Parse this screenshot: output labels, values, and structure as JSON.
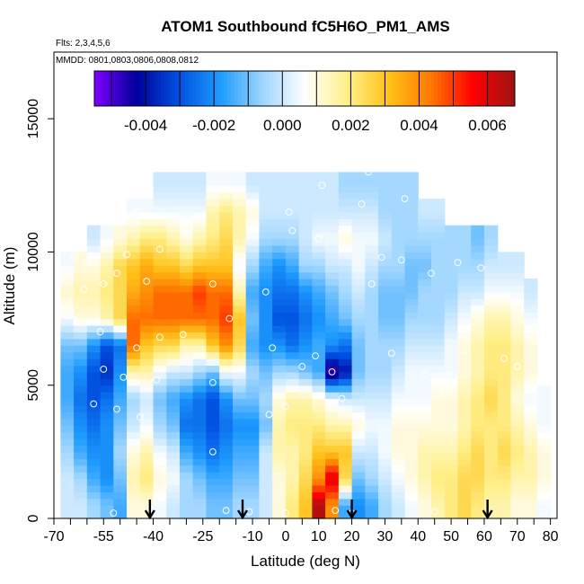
{
  "chart_data": {
    "type": "heatmap",
    "title": "ATOM1 Southbound fC5H6O_PM1_AMS",
    "subtitle_flights": "Flts: 2,3,4,5,6",
    "subtitle_dates": "MMDD: 0801,0803,0806,0808,0812",
    "xlabel": "Latitude (deg N)",
    "ylabel": "Altitude (m)",
    "xlim": [
      -70,
      82
    ],
    "ylim": [
      0,
      17500
    ],
    "x_ticks": [
      -70,
      -55,
      -40,
      -25,
      -10,
      0,
      10,
      20,
      30,
      40,
      50,
      60,
      70,
      80
    ],
    "x_minor_ticks": [
      -65,
      -60,
      -50,
      -45,
      -35,
      -30,
      -20,
      -15,
      -5,
      5,
      15,
      25,
      35,
      45,
      55,
      65,
      75
    ],
    "y_ticks": [
      0,
      5000,
      10000,
      15000
    ],
    "colorbar": {
      "min": -0.0055,
      "max": 0.0068,
      "ticks": [
        -0.004,
        -0.002,
        0.0,
        0.002,
        0.004,
        0.006
      ],
      "tick_labels": [
        "-0.004",
        "-0.002",
        "0.000",
        "0.002",
        "0.004",
        "0.006"
      ],
      "colors": [
        "#7f00ff",
        "#00009a",
        "#0050e0",
        "#1e9bff",
        "#9ed5ff",
        "#ffffff",
        "#ffef8a",
        "#ffc21a",
        "#ff7a00",
        "#ff0000",
        "#9b1414"
      ]
    },
    "arrows_latitude": [
      -41,
      -13,
      20,
      61
    ],
    "profiles": [
      {
        "lat": -66,
        "vals": [
          0,
          0,
          -0.0005,
          -0.001,
          -0.0015,
          -0.0015,
          -0.001,
          0.0005,
          0.0012,
          0.0005
        ]
      },
      {
        "lat": -62,
        "vals": [
          0,
          -0.0005,
          -0.0015,
          -0.002,
          -0.0025,
          -0.002,
          -0.001,
          0.001,
          0.0015,
          0.001
        ]
      },
      {
        "lat": -58,
        "vals": [
          -0.0005,
          -0.0015,
          -0.002,
          -0.0025,
          -0.003,
          -0.003,
          -0.002,
          0.001,
          0.0015,
          0.001,
          0
        ]
      },
      {
        "lat": -54,
        "vals": [
          -0.001,
          -0.002,
          -0.002,
          -0.002,
          -0.0025,
          -0.0035,
          -0.003,
          0.0015,
          0.002,
          0.0015,
          0.0005
        ]
      },
      {
        "lat": -50,
        "vals": [
          -0.0015,
          -0.001,
          -0.0005,
          -0.001,
          -0.0015,
          -0.002,
          -0.0025,
          0.0025,
          0.0025,
          0.0025,
          0.001
        ]
      },
      {
        "lat": -46,
        "vals": [
          0.001,
          0.0015,
          0.001,
          0,
          -0.0005,
          0.0015,
          0.0045,
          0.0045,
          0.0035,
          0.003,
          0.0015,
          0.0005
        ]
      },
      {
        "lat": -42,
        "vals": [
          0.001,
          0.002,
          0.0015,
          0.0005,
          0,
          0.0015,
          0.003,
          0.0045,
          0.004,
          0.0035,
          0.002,
          0.0005
        ]
      },
      {
        "lat": -38,
        "vals": [
          0.0005,
          0.001,
          0.0005,
          -0.0005,
          -0.001,
          0.0005,
          0.0025,
          0.0045,
          0.0045,
          0.003,
          0.002,
          0.0005,
          0
        ]
      },
      {
        "lat": -34,
        "vals": [
          0,
          0.0005,
          0,
          -0.001,
          -0.0015,
          0,
          0.0025,
          0.0045,
          0.0045,
          0.003,
          0.0015,
          0.0005,
          0
        ]
      },
      {
        "lat": -30,
        "vals": [
          -0.0005,
          -0.0005,
          -0.0015,
          -0.0025,
          -0.002,
          0,
          0.0015,
          0.0045,
          0.0045,
          0.0025,
          0.001,
          0.0005,
          0
        ]
      },
      {
        "lat": -26,
        "vals": [
          -0.0005,
          -0.001,
          -0.002,
          -0.0025,
          -0.0025,
          -0.0005,
          0.0015,
          0.0045,
          0.005,
          0.003,
          0.0015,
          0.0005,
          0
        ]
      },
      {
        "lat": -22,
        "vals": [
          -0.001,
          -0.0015,
          -0.0025,
          -0.003,
          -0.003,
          -0.001,
          0.003,
          0.0045,
          0.0045,
          0.003,
          0.002,
          0.0015,
          0.0005
        ]
      },
      {
        "lat": -18,
        "vals": [
          -0.001,
          -0.0015,
          -0.002,
          -0.0025,
          -0.002,
          0.0005,
          0.004,
          0.005,
          0.0045,
          0.003,
          0.0025,
          0.002,
          0.0005
        ]
      },
      {
        "lat": -14,
        "vals": [
          -0.0005,
          -0.001,
          -0.0015,
          -0.002,
          -0.001,
          0.0005,
          0.0025,
          0.003,
          0.0015,
          0.0005,
          0.0015,
          0.0015,
          0.0005
        ]
      },
      {
        "lat": -10,
        "vals": [
          -0.0005,
          -0.001,
          -0.0015,
          -0.002,
          -0.001,
          -0.0005,
          -0.0015,
          -0.001,
          -0.0015,
          -0.0005,
          0.0005,
          0.001,
          0
        ]
      },
      {
        "lat": -6,
        "vals": [
          0,
          0,
          0,
          -0.001,
          -0.0005,
          -0.001,
          -0.002,
          -0.002,
          -0.002,
          -0.0015,
          -0.0005,
          0,
          0
        ]
      },
      {
        "lat": -2,
        "vals": [
          0.001,
          0.001,
          0.0015,
          0.0015,
          0.001,
          -0.0005,
          -0.002,
          -0.003,
          -0.0025,
          -0.002,
          -0.0005,
          0,
          0
        ]
      },
      {
        "lat": 2,
        "vals": [
          0.002,
          0.0015,
          0.0015,
          0.002,
          0.0015,
          -0.0005,
          -0.0025,
          -0.003,
          -0.0025,
          -0.0015,
          -0.0005,
          0,
          0
        ]
      },
      {
        "lat": 6,
        "vals": [
          0.003,
          0.0025,
          0.002,
          0.002,
          0.0015,
          -0.001,
          -0.002,
          -0.0025,
          -0.002,
          -0.0005,
          0,
          0,
          0
        ]
      },
      {
        "lat": 10,
        "vals": [
          0.0065,
          0.004,
          0.003,
          0.002,
          0.001,
          -0.0015,
          -0.0015,
          -0.002,
          -0.0015,
          -0.0005,
          0.0005,
          0,
          0
        ]
      },
      {
        "lat": 14,
        "vals": [
          0.004,
          0.006,
          0.003,
          0.0015,
          0.0005,
          -0.005,
          -0.002,
          -0.0015,
          -0.001,
          0,
          0.0005,
          0,
          0
        ]
      },
      {
        "lat": 18,
        "vals": [
          -0.0015,
          0.0025,
          0.003,
          0.0015,
          0,
          -0.004,
          -0.0025,
          -0.001,
          -0.0005,
          0,
          0.001,
          0,
          -0.0005
        ]
      },
      {
        "lat": 22,
        "vals": [
          -0.002,
          -0.001,
          0,
          0.001,
          0,
          -0.001,
          -0.001,
          -0.0005,
          0,
          0.0005,
          0.0005,
          0,
          -0.0005
        ]
      },
      {
        "lat": 26,
        "vals": [
          -0.0015,
          -0.0005,
          0,
          0.0005,
          0,
          -0.0005,
          -0.0005,
          -0.0005,
          -0.0005,
          0,
          0.0005,
          0,
          -0.0005
        ]
      },
      {
        "lat": 30,
        "vals": [
          -0.0005,
          0,
          0.0005,
          0.0005,
          0,
          -0.0005,
          -0.0005,
          -0.001,
          -0.001,
          -0.0005,
          0,
          -0.0005,
          -0.0005
        ]
      },
      {
        "lat": 34,
        "vals": [
          0,
          0.0005,
          0.001,
          0.001,
          0.0005,
          0,
          -0.0005,
          -0.001,
          -0.001,
          -0.0005,
          -0.0005,
          -0.0005,
          -0.0005
        ]
      },
      {
        "lat": 38,
        "vals": [
          0.0005,
          0.001,
          0.001,
          0.001,
          0.0005,
          0.0005,
          0,
          -0.0005,
          -0.001,
          -0.001,
          -0.0005,
          -0.0005,
          -0.0005
        ]
      },
      {
        "lat": 42,
        "vals": [
          0.001,
          0.0015,
          0.0015,
          0.001,
          0.0005,
          0.0005,
          0,
          -0.0005,
          -0.0005,
          -0.001,
          -0.0005,
          0
        ]
      },
      {
        "lat": 46,
        "vals": [
          0.0015,
          0.002,
          0.0015,
          0.001,
          0.001,
          0.0005,
          0,
          -0.0005,
          -0.0005,
          -0.0005,
          -0.0005,
          0
        ]
      },
      {
        "lat": 50,
        "vals": [
          0.002,
          0.002,
          0.0015,
          0.001,
          0.001,
          0.0005,
          0.0005,
          0,
          -0.0005,
          -0.0005,
          -0.0005
        ]
      },
      {
        "lat": 54,
        "vals": [
          0.0025,
          0.0025,
          0.002,
          0.0015,
          0.0015,
          0.001,
          0.001,
          0.0005,
          0,
          -0.0005,
          -0.0005
        ]
      },
      {
        "lat": 58,
        "vals": [
          0.002,
          0.0025,
          0.0025,
          0.002,
          0.002,
          0.0015,
          0.0015,
          0.001,
          0,
          -0.0005,
          -0.001
        ]
      },
      {
        "lat": 62,
        "vals": [
          0.0015,
          0.002,
          0.002,
          0.002,
          0.0025,
          0.002,
          0.002,
          0.0015,
          0.0005,
          0,
          -0.0005
        ]
      },
      {
        "lat": 66,
        "vals": [
          0.0015,
          0.002,
          0.0025,
          0.002,
          0.002,
          0.002,
          0.002,
          0.0015,
          0.0005,
          0
        ]
      },
      {
        "lat": 70,
        "vals": [
          0.001,
          0.0015,
          0.002,
          0.0015,
          0.001,
          0.0015,
          0.0015,
          0.001,
          0.0005,
          0
        ]
      },
      {
        "lat": 74,
        "vals": [
          0.001,
          0.0015,
          0.0015,
          0.001,
          0.0005,
          0.001,
          0.001,
          0.0005,
          0
        ]
      },
      {
        "lat": 78,
        "vals": [
          0.0005,
          0.001,
          0.001,
          0.0005,
          0.0005
        ]
      }
    ],
    "samples": [
      [
        -52,
        200
      ],
      [
        -41,
        350
      ],
      [
        -18,
        300
      ],
      [
        -11,
        250
      ],
      [
        0,
        200
      ],
      [
        15,
        300
      ],
      [
        20,
        200
      ],
      [
        45,
        250
      ],
      [
        78,
        250
      ],
      [
        -58,
        4300
      ],
      [
        -51,
        4100
      ],
      [
        -44,
        3800
      ],
      [
        -5,
        3900
      ],
      [
        0,
        4200
      ],
      [
        17,
        4500
      ],
      [
        -22,
        2500
      ],
      [
        -55,
        5600
      ],
      [
        -49,
        5300
      ],
      [
        -39,
        5200
      ],
      [
        -22,
        5100
      ],
      [
        -16,
        5600
      ],
      [
        5,
        5700
      ],
      [
        14,
        5500
      ],
      [
        42,
        5400
      ],
      [
        48,
        4700
      ],
      [
        70,
        5700
      ],
      [
        -63,
        7400
      ],
      [
        -56,
        7000
      ],
      [
        -45,
        6400
      ],
      [
        -38,
        6800
      ],
      [
        -31,
        6900
      ],
      [
        -17,
        7500
      ],
      [
        -4,
        6400
      ],
      [
        9,
        6100
      ],
      [
        32,
        6200
      ],
      [
        54,
        6300
      ],
      [
        66,
        6000
      ],
      [
        -61,
        8600
      ],
      [
        -55,
        8800
      ],
      [
        -51,
        9200
      ],
      [
        -42,
        8900
      ],
      [
        -22,
        8800
      ],
      [
        -6,
        8500
      ],
      [
        26,
        8800
      ],
      [
        44,
        9200
      ],
      [
        59,
        9400
      ],
      [
        -64,
        9800
      ],
      [
        -60,
        9600
      ],
      [
        -48,
        9900
      ],
      [
        -38,
        10100
      ],
      [
        -30,
        10600
      ],
      [
        -11,
        11000
      ],
      [
        2,
        10800
      ],
      [
        10,
        10500
      ],
      [
        17,
        10200
      ],
      [
        29,
        9800
      ],
      [
        35,
        9700
      ],
      [
        52,
        9600
      ],
      [
        70,
        10200
      ],
      [
        -45,
        11500
      ],
      [
        -31,
        11200
      ],
      [
        -25,
        11300
      ],
      [
        1,
        11500
      ],
      [
        23,
        11800
      ],
      [
        36,
        12000
      ],
      [
        50,
        12200
      ],
      [
        63,
        11600
      ],
      [
        -42,
        12400
      ],
      [
        11,
        12500
      ],
      [
        25,
        13000
      ]
    ]
  }
}
